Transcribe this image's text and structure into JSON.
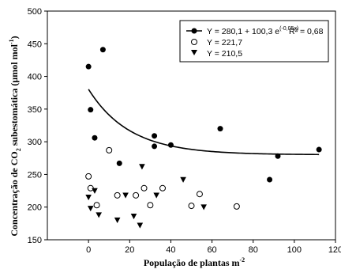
{
  "chart_data": {
    "type": "scatter",
    "title": "",
    "xlabel": "População de plantas m",
    "xlabel_sup": "-2",
    "ylabel_pre": "Concentração de CO",
    "ylabel_sub": "2",
    "ylabel_post": " subestomática (µmol mol",
    "ylabel_sup": "-1",
    "ylabel_end": ")",
    "xlim": [
      -20,
      120
    ],
    "ylim": [
      150,
      500
    ],
    "xticks": [
      0,
      20,
      40,
      60,
      80,
      100,
      120
    ],
    "yticks": [
      150,
      200,
      250,
      300,
      350,
      400,
      450,
      500
    ],
    "grid": false,
    "legend_position": "top-right",
    "series": [
      {
        "marker": "filled-circle",
        "legend_label": "Y = 280,1 + 100,3 e",
        "legend_exp": "(-0,05x)",
        "legend_r2": "R² = 0,68",
        "x": [
          0,
          1,
          3,
          7,
          15,
          32,
          32,
          40,
          64,
          88,
          92,
          112
        ],
        "y": [
          415,
          349,
          306,
          441,
          267,
          309,
          293,
          295,
          320,
          242,
          278,
          288
        ],
        "fit": {
          "a": 280.1,
          "b": 100.3,
          "k": -0.05,
          "x_range": [
            0,
            112
          ]
        }
      },
      {
        "marker": "open-circle",
        "legend_label": "Y = 221,7",
        "x": [
          0,
          1,
          4,
          10,
          14,
          23,
          27,
          30,
          36,
          50,
          54,
          72
        ],
        "y": [
          247,
          229,
          203,
          287,
          218,
          218,
          229,
          203,
          229,
          202,
          220,
          201
        ]
      },
      {
        "marker": "filled-triangle-down",
        "legend_label": "Y = 210,5",
        "x": [
          0,
          1,
          3,
          5,
          14,
          18,
          22,
          25,
          26,
          33,
          46,
          56
        ],
        "y": [
          215,
          198,
          225,
          188,
          180,
          218,
          186,
          172,
          262,
          218,
          242,
          200
        ]
      }
    ]
  }
}
